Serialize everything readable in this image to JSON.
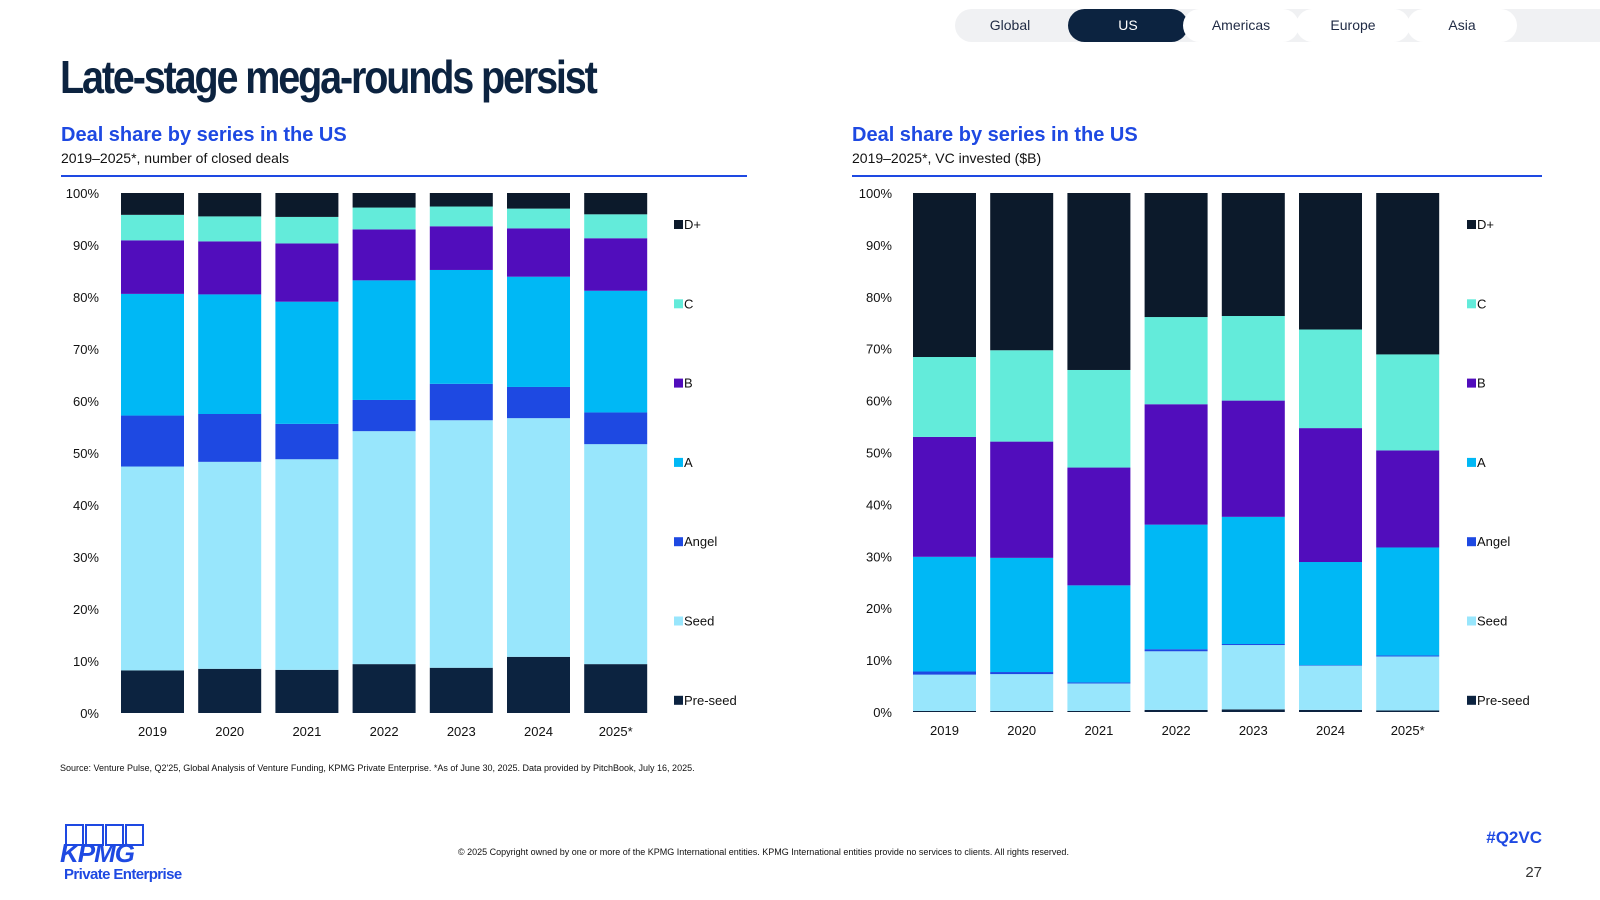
{
  "tabs": [
    "Global",
    "US",
    "Americas",
    "Europe",
    "Asia"
  ],
  "active_tab": "US",
  "page_title": "Late-stage mega-rounds persist",
  "left_chart": {
    "title": "Deal share by series in the US",
    "subtitle": "2019–2025*, number of closed deals"
  },
  "right_chart": {
    "title": "Deal share by series in the US",
    "subtitle": "2019–2025*, VC invested ($B)"
  },
  "chart_data": [
    {
      "type": "bar",
      "stacked": true,
      "title": "Deal share by series in the US",
      "subtitle": "2019–2025*, number of closed deals",
      "categories": [
        "2019",
        "2020",
        "2021",
        "2022",
        "2023",
        "2024",
        "2025*"
      ],
      "y_ticks": [
        "0%",
        "10%",
        "20%",
        "30%",
        "40%",
        "50%",
        "60%",
        "70%",
        "80%",
        "90%",
        "100%"
      ],
      "ylim": [
        0,
        100
      ],
      "legend_position": "right",
      "series": [
        {
          "name": "Pre-seed",
          "color": "#0c2340",
          "values": [
            8.2,
            8.5,
            8.3,
            9.4,
            8.7,
            10.8,
            9.4
          ]
        },
        {
          "name": "Seed",
          "color": "#98e6fc",
          "values": [
            39.2,
            39.8,
            40.5,
            44.8,
            47.6,
            45.9,
            42.3
          ]
        },
        {
          "name": "Angel",
          "color": "#1e49e2",
          "values": [
            9.8,
            9.2,
            6.8,
            6.0,
            7.0,
            6.0,
            6.1
          ]
        },
        {
          "name": "A",
          "color": "#00b8f5",
          "values": [
            23.4,
            23.0,
            23.5,
            23.0,
            21.9,
            21.2,
            23.4
          ]
        },
        {
          "name": "B",
          "color": "#510dbc",
          "values": [
            10.3,
            10.2,
            11.2,
            9.8,
            8.4,
            9.3,
            10.1
          ]
        },
        {
          "name": "C",
          "color": "#63ebda",
          "values": [
            4.9,
            4.8,
            5.1,
            4.2,
            3.8,
            3.8,
            4.6
          ]
        },
        {
          "name": "D+",
          "color": "#0c1a2b",
          "values": [
            4.2,
            4.5,
            4.6,
            2.8,
            2.6,
            3.0,
            4.1
          ]
        }
      ]
    },
    {
      "type": "bar",
      "stacked": true,
      "title": "Deal share by series in the US",
      "subtitle": "2019–2025*, VC invested ($B)",
      "categories": [
        "2019",
        "2020",
        "2021",
        "2022",
        "2023",
        "2024",
        "2025*"
      ],
      "y_ticks": [
        "0%",
        "10%",
        "20%",
        "30%",
        "40%",
        "50%",
        "60%",
        "70%",
        "80%",
        "90%",
        "100%"
      ],
      "ylim": [
        0,
        100
      ],
      "legend_position": "right",
      "series": [
        {
          "name": "Pre-seed",
          "color": "#0c2340",
          "values": [
            0.2,
            0.2,
            0.2,
            0.4,
            0.5,
            0.4,
            0.3
          ]
        },
        {
          "name": "Seed",
          "color": "#98e6fc",
          "values": [
            7.0,
            7.1,
            5.3,
            11.3,
            12.4,
            8.5,
            10.4
          ]
        },
        {
          "name": "Angel",
          "color": "#1e49e2",
          "values": [
            0.6,
            0.4,
            0.2,
            0.4,
            0.2,
            0.1,
            0.2
          ]
        },
        {
          "name": "A",
          "color": "#00b8f5",
          "values": [
            22.1,
            22.0,
            18.7,
            24.0,
            24.5,
            19.9,
            20.8
          ]
        },
        {
          "name": "B",
          "color": "#510dbc",
          "values": [
            23.1,
            22.4,
            22.7,
            23.2,
            22.4,
            25.8,
            18.7
          ]
        },
        {
          "name": "C",
          "color": "#63ebda",
          "values": [
            15.4,
            17.6,
            18.8,
            16.8,
            16.3,
            19.0,
            18.5
          ]
        },
        {
          "name": "D+",
          "color": "#0c1a2b",
          "values": [
            31.6,
            30.3,
            34.1,
            23.9,
            23.7,
            26.3,
            31.1
          ]
        }
      ]
    }
  ],
  "source": "Source: Venture Pulse, Q2'25, Global Analysis of Venture Funding, KPMG Private Enterprise. *As of June 30, 2025. Data provided by PitchBook, July 16, 2025.",
  "footer": {
    "copyright": "© 2025 Copyright owned by one or more of the KPMG International entities. KPMG International entities provide no services to clients. All rights reserved.",
    "hashtag": "#Q2VC",
    "page_number": "27",
    "logo_text": "KPMG",
    "logo_subtext": "Private Enterprise"
  }
}
